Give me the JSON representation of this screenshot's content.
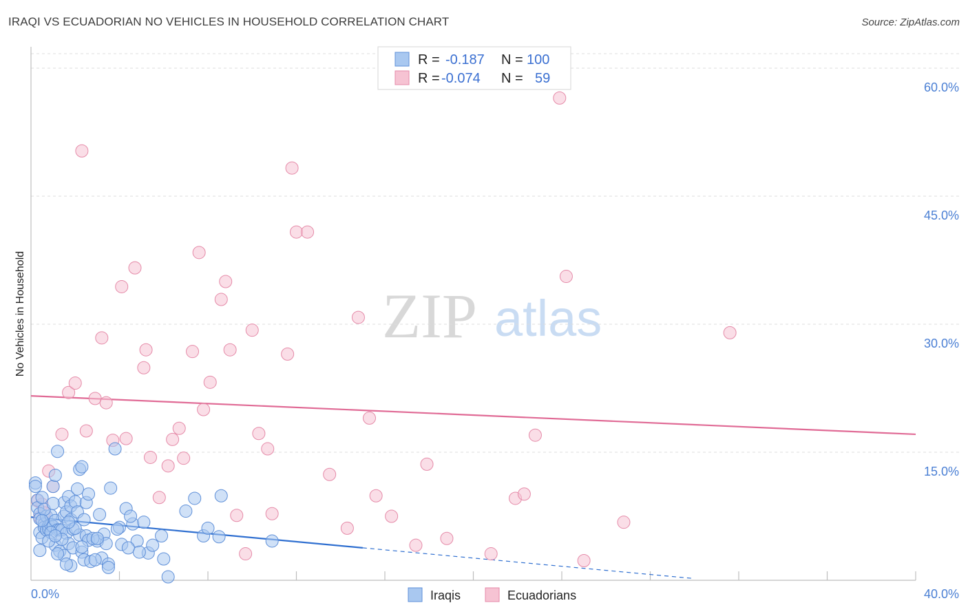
{
  "title": "IRAQI VS ECUADORIAN NO VEHICLES IN HOUSEHOLD CORRELATION CHART",
  "source": "Source: ZipAtlas.com",
  "colors": {
    "iraqi_fill": "#a9c8f0",
    "iraqi_stroke": "#5e8fd8",
    "iraqi_line": "#2f6fd0",
    "ecuadorian_fill": "#f6c3d3",
    "ecuadorian_stroke": "#e58aa8",
    "ecuadorian_line": "#e06a95",
    "grid": "#dcdcdc",
    "tick_text": "#4a7fd4"
  },
  "legend": {
    "rows": [
      {
        "r_label": "R =",
        "r_value": "-0.187",
        "n_label": "N =",
        "n_value": "100"
      },
      {
        "r_label": "R =",
        "r_value": "-0.074",
        "n_label": "N =",
        "n_value": "59"
      }
    ]
  },
  "bottom_legend": [
    "Iraqis",
    "Ecuadorians"
  ],
  "watermark": {
    "zip": "ZIP",
    "atlas": "atlas"
  },
  "chart_data": {
    "type": "scatter",
    "xlabel": "",
    "ylabel": "No Vehicles in Household",
    "xlim": [
      0,
      40
    ],
    "ylim": [
      0,
      60
    ],
    "x_ticks_labeled": [
      "0.0%",
      "40.0%"
    ],
    "y_ticks": [
      {
        "value": 15,
        "label": "15.0%"
      },
      {
        "value": 30,
        "label": "30.0%"
      },
      {
        "value": 45,
        "label": "45.0%"
      },
      {
        "value": 60,
        "label": "60.0%"
      }
    ],
    "grid": true,
    "series": [
      {
        "name": "Iraqis",
        "r": -0.187,
        "n": 100,
        "trend": {
          "x0": 0,
          "y0": 7.4,
          "x1": 15,
          "y1": 3.8,
          "dashed_to_x": 30
        },
        "points": [
          [
            0.2,
            11.4
          ],
          [
            0.2,
            11.0
          ],
          [
            0.3,
            9.4
          ],
          [
            0.3,
            8.5
          ],
          [
            0.4,
            7.8
          ],
          [
            0.4,
            7.2
          ],
          [
            0.4,
            5.6
          ],
          [
            0.5,
            9.7
          ],
          [
            0.5,
            5.0
          ],
          [
            0.6,
            6.6
          ],
          [
            0.6,
            6.2
          ],
          [
            0.7,
            7.5
          ],
          [
            0.7,
            5.9
          ],
          [
            0.8,
            6.4
          ],
          [
            0.8,
            6.0
          ],
          [
            0.9,
            7.6
          ],
          [
            0.9,
            6.5
          ],
          [
            1.0,
            11.0
          ],
          [
            1.0,
            6.3
          ],
          [
            1.1,
            12.3
          ],
          [
            1.1,
            7.0
          ],
          [
            1.1,
            4.1
          ],
          [
            1.2,
            15.1
          ],
          [
            1.2,
            5.9
          ],
          [
            1.3,
            5.9
          ],
          [
            1.3,
            3.4
          ],
          [
            1.4,
            5.9
          ],
          [
            1.5,
            7.5
          ],
          [
            1.5,
            9.1
          ],
          [
            1.5,
            2.9
          ],
          [
            1.6,
            8.0
          ],
          [
            1.6,
            5.5
          ],
          [
            1.7,
            9.8
          ],
          [
            1.7,
            4.3
          ],
          [
            1.8,
            8.7
          ],
          [
            1.8,
            7.1
          ],
          [
            1.8,
            1.7
          ],
          [
            1.9,
            6.0
          ],
          [
            1.9,
            3.8
          ],
          [
            2.0,
            9.2
          ],
          [
            2.1,
            10.7
          ],
          [
            2.1,
            8.0
          ],
          [
            2.2,
            13.0
          ],
          [
            2.2,
            5.3
          ],
          [
            2.3,
            13.3
          ],
          [
            2.3,
            3.3
          ],
          [
            2.4,
            7.1
          ],
          [
            2.4,
            2.4
          ],
          [
            2.5,
            9.1
          ],
          [
            2.5,
            5.2
          ],
          [
            2.6,
            10.1
          ],
          [
            2.6,
            4.7
          ],
          [
            2.7,
            2.2
          ],
          [
            3.0,
            4.6
          ],
          [
            3.1,
            7.7
          ],
          [
            3.2,
            2.6
          ],
          [
            3.3,
            5.4
          ],
          [
            3.4,
            4.3
          ],
          [
            3.6,
            10.8
          ],
          [
            3.8,
            15.4
          ],
          [
            4.0,
            6.2
          ],
          [
            4.1,
            4.2
          ],
          [
            4.3,
            8.4
          ],
          [
            4.6,
            6.6
          ],
          [
            4.8,
            4.6
          ],
          [
            5.1,
            6.8
          ],
          [
            5.3,
            3.2
          ],
          [
            5.9,
            5.2
          ],
          [
            6.2,
            0.4
          ],
          [
            7.0,
            8.1
          ],
          [
            7.4,
            9.6
          ],
          [
            7.8,
            5.2
          ],
          [
            8.0,
            6.1
          ],
          [
            8.5,
            5.1
          ],
          [
            8.6,
            9.9
          ],
          [
            10.9,
            4.6
          ],
          [
            4.5,
            7.5
          ],
          [
            3.5,
            1.9
          ],
          [
            2.8,
            4.9
          ],
          [
            1.4,
            4.8
          ],
          [
            0.9,
            5.6
          ],
          [
            0.6,
            8.3
          ],
          [
            1.0,
            9.0
          ],
          [
            2.0,
            6.1
          ],
          [
            3.0,
            4.9
          ],
          [
            4.9,
            3.3
          ],
          [
            6.0,
            2.5
          ],
          [
            1.2,
            3.1
          ],
          [
            0.5,
            7.0
          ],
          [
            1.6,
            1.9
          ],
          [
            2.9,
            2.4
          ],
          [
            4.4,
            3.8
          ],
          [
            0.8,
            4.6
          ],
          [
            1.7,
            6.8
          ],
          [
            3.5,
            1.5
          ],
          [
            2.3,
            3.9
          ],
          [
            1.1,
            5.2
          ],
          [
            0.4,
            3.5
          ],
          [
            5.5,
            4.1
          ],
          [
            3.9,
            6.0
          ]
        ]
      },
      {
        "name": "Ecuadorians",
        "r": -0.074,
        "n": 59,
        "trend": {
          "x0": 0,
          "y0": 21.6,
          "x1": 40,
          "y1": 17.1
        },
        "points": [
          [
            0.3,
            9.3
          ],
          [
            0.4,
            7.4
          ],
          [
            0.5,
            8.9
          ],
          [
            0.6,
            7.9
          ],
          [
            0.8,
            12.8
          ],
          [
            1.0,
            11.0
          ],
          [
            1.4,
            17.1
          ],
          [
            1.7,
            22.0
          ],
          [
            2.0,
            23.1
          ],
          [
            2.3,
            50.3
          ],
          [
            2.5,
            17.5
          ],
          [
            2.9,
            21.3
          ],
          [
            3.2,
            28.4
          ],
          [
            3.4,
            20.8
          ],
          [
            3.7,
            16.4
          ],
          [
            4.1,
            34.4
          ],
          [
            4.3,
            16.6
          ],
          [
            4.7,
            36.6
          ],
          [
            5.1,
            24.9
          ],
          [
            5.2,
            27.0
          ],
          [
            5.4,
            14.4
          ],
          [
            5.8,
            9.7
          ],
          [
            6.2,
            13.4
          ],
          [
            6.4,
            16.5
          ],
          [
            6.7,
            17.8
          ],
          [
            6.9,
            14.3
          ],
          [
            7.3,
            26.8
          ],
          [
            7.6,
            38.4
          ],
          [
            7.8,
            20.0
          ],
          [
            8.1,
            23.2
          ],
          [
            8.6,
            32.9
          ],
          [
            8.8,
            35.0
          ],
          [
            9.0,
            27.0
          ],
          [
            9.3,
            7.6
          ],
          [
            9.7,
            3.1
          ],
          [
            10.0,
            29.3
          ],
          [
            10.3,
            17.2
          ],
          [
            10.7,
            15.4
          ],
          [
            10.9,
            7.8
          ],
          [
            11.6,
            26.5
          ],
          [
            11.8,
            48.3
          ],
          [
            12.0,
            40.8
          ],
          [
            12.5,
            40.8
          ],
          [
            13.5,
            12.4
          ],
          [
            14.3,
            6.1
          ],
          [
            14.8,
            30.8
          ],
          [
            15.3,
            19.0
          ],
          [
            15.6,
            9.9
          ],
          [
            16.3,
            7.5
          ],
          [
            17.4,
            4.1
          ],
          [
            17.9,
            13.6
          ],
          [
            18.8,
            4.9
          ],
          [
            20.8,
            3.1
          ],
          [
            21.9,
            9.6
          ],
          [
            22.3,
            10.1
          ],
          [
            22.8,
            17.0
          ],
          [
            23.9,
            56.5
          ],
          [
            24.2,
            35.6
          ],
          [
            31.6,
            29.0
          ]
        ]
      }
    ],
    "extra_ecuadorian": [
      [
        25.0,
        2.3
      ],
      [
        26.8,
        6.8
      ]
    ]
  }
}
